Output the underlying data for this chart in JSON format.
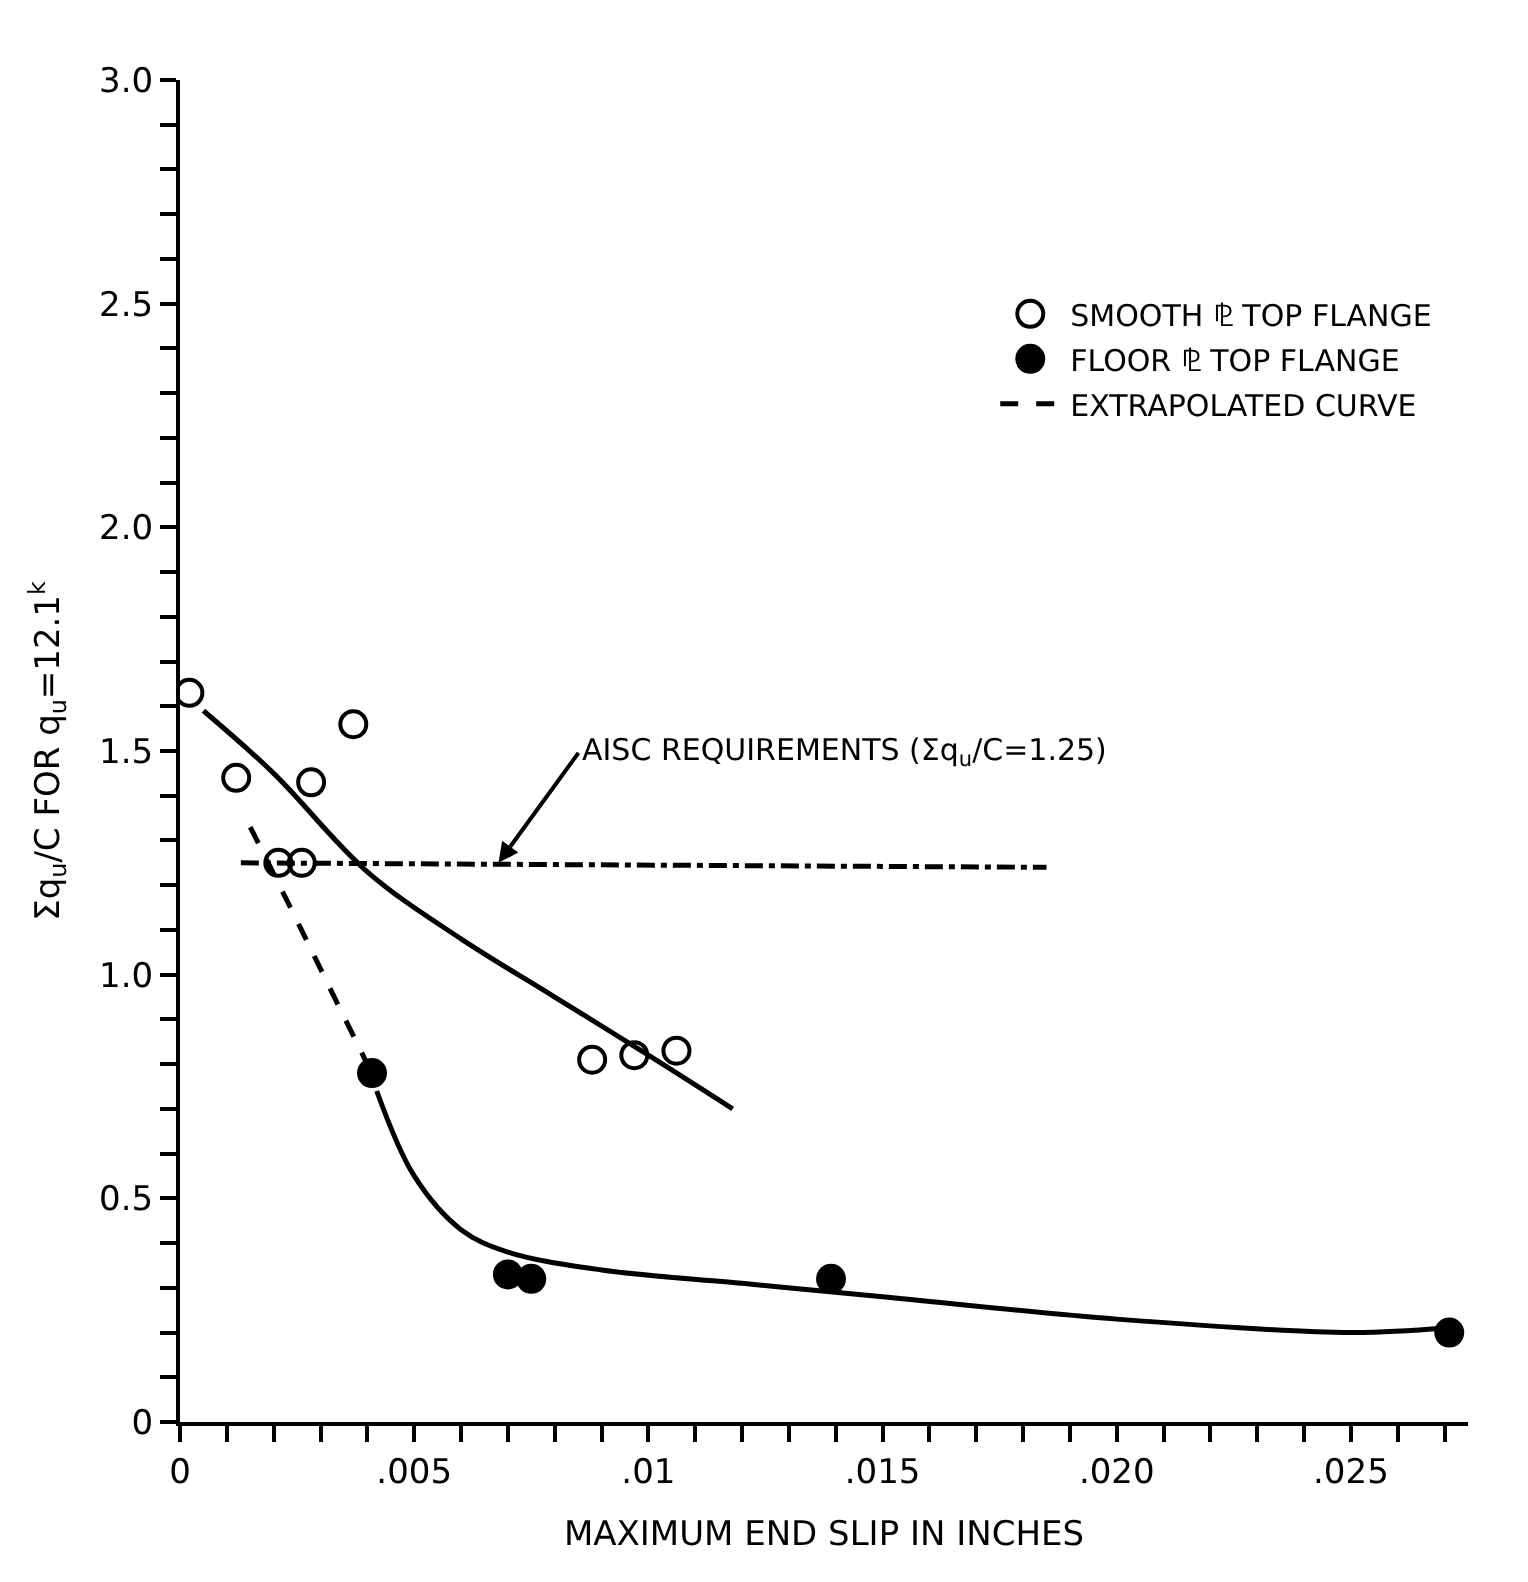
{
  "chart_data": {
    "type": "scatter",
    "xlabel": "MAXIMUM END SLIP IN INCHES",
    "ylabel": "Σq$_{u}$/C FOR q$_{u}$=12.1$^{k}$",
    "xlim": [
      0,
      0.0275
    ],
    "ylim": [
      0,
      3.0
    ],
    "xticks": [
      {
        "value": 0,
        "label": "0"
      },
      {
        "value": 0.001,
        "label": null
      },
      {
        "value": 0.002,
        "label": null
      },
      {
        "value": 0.003,
        "label": null
      },
      {
        "value": 0.004,
        "label": null
      },
      {
        "value": 0.005,
        "label": ".005"
      },
      {
        "value": 0.006,
        "label": null
      },
      {
        "value": 0.007,
        "label": null
      },
      {
        "value": 0.008,
        "label": null
      },
      {
        "value": 0.009,
        "label": null
      },
      {
        "value": 0.01,
        "label": ".01"
      },
      {
        "value": 0.011,
        "label": null
      },
      {
        "value": 0.012,
        "label": null
      },
      {
        "value": 0.013,
        "label": null
      },
      {
        "value": 0.014,
        "label": null
      },
      {
        "value": 0.015,
        "label": ".015"
      },
      {
        "value": 0.016,
        "label": null
      },
      {
        "value": 0.017,
        "label": null
      },
      {
        "value": 0.018,
        "label": null
      },
      {
        "value": 0.019,
        "label": null
      },
      {
        "value": 0.02,
        "label": ".020"
      },
      {
        "value": 0.021,
        "label": null
      },
      {
        "value": 0.022,
        "label": null
      },
      {
        "value": 0.023,
        "label": null
      },
      {
        "value": 0.024,
        "label": null
      },
      {
        "value": 0.025,
        "label": ".025"
      },
      {
        "value": 0.026,
        "label": null
      },
      {
        "value": 0.027,
        "label": null
      }
    ],
    "yticks": [
      0,
      {
        "value": 0.1,
        "label": null
      },
      {
        "value": 0.2,
        "label": null
      },
      {
        "value": 0.3,
        "label": null
      },
      {
        "value": 0.4,
        "label": null
      },
      {
        "value": 0.5,
        "label": "0.5"
      },
      {
        "value": 0.6,
        "label": null
      },
      {
        "value": 0.7,
        "label": null
      },
      {
        "value": 0.8,
        "label": null
      },
      {
        "value": 0.9,
        "label": null
      },
      {
        "value": 1.0,
        "label": "1.0"
      },
      {
        "value": 1.1,
        "label": null
      },
      {
        "value": 1.2,
        "label": null
      },
      {
        "value": 1.3,
        "label": null
      },
      {
        "value": 1.4,
        "label": null
      },
      {
        "value": 1.5,
        "label": "1.5"
      },
      {
        "value": 1.6,
        "label": null
      },
      {
        "value": 1.7,
        "label": null
      },
      {
        "value": 1.8,
        "label": null
      },
      {
        "value": 1.9,
        "label": null
      },
      {
        "value": 2.0,
        "label": "2.0"
      },
      {
        "value": 2.1,
        "label": null
      },
      {
        "value": 2.2,
        "label": null
      },
      {
        "value": 2.3,
        "label": null
      },
      {
        "value": 2.4,
        "label": null
      },
      {
        "value": 2.5,
        "label": "2.5"
      },
      {
        "value": 2.6,
        "label": null
      },
      {
        "value": 2.7,
        "label": null
      },
      {
        "value": 2.8,
        "label": null
      },
      {
        "value": 2.9,
        "label": null
      },
      {
        "value": 3.0,
        "label": "3.0"
      }
    ],
    "legend": "top right",
    "series": [
      {
        "name": "SMOOTH ⅊ TOP FLANGE",
        "marker": "circle-open",
        "color": "#000000",
        "x": [
          0.0002,
          0.0012,
          0.0021,
          0.0026,
          0.0028,
          0.0037,
          0.0088,
          0.0097,
          0.0106
        ],
        "values": [
          1.63,
          1.44,
          1.25,
          1.25,
          1.43,
          1.56,
          0.81,
          0.82,
          0.83
        ]
      },
      {
        "name": "FLOOR ⅊ TOP FLANGE",
        "marker": "circle",
        "color": "#000000",
        "x": [
          0.0041,
          0.007,
          0.0075,
          0.0139,
          0.0271
        ],
        "values": [
          0.78,
          0.33,
          0.32,
          0.32,
          0.2
        ]
      },
      {
        "name": "EXTRAPOLATED CURVE",
        "type": "line",
        "line_style": "dashed",
        "color": "#000000",
        "x": [
          0.0015,
          0.0025,
          0.0032,
          0.004
        ],
        "values": [
          1.33,
          1.12,
          0.97,
          0.8
        ]
      },
      {
        "type": "line",
        "line_style": "solid",
        "color": "#000000",
        "x": [
          0.0005,
          0.002,
          0.004,
          0.006,
          0.008,
          0.01,
          0.0118
        ],
        "values": [
          1.59,
          1.45,
          1.23,
          1.08,
          0.95,
          0.82,
          0.7
        ]
      },
      {
        "type": "line",
        "line_style": "solid",
        "color": "#000000",
        "x": [
          0.0042,
          0.005,
          0.006,
          0.007,
          0.009,
          0.012,
          0.015,
          0.02,
          0.025,
          0.027
        ],
        "values": [
          0.74,
          0.55,
          0.43,
          0.38,
          0.34,
          0.31,
          0.28,
          0.23,
          0.2,
          0.21
        ]
      },
      {
        "type": "line",
        "line_style": "dashdot",
        "color": "#000000",
        "x": [
          0.0013,
          0.0185
        ],
        "values": [
          1.25,
          1.24
        ]
      }
    ],
    "annotations": [
      {
        "text": "AISC REQUIREMENTS (Σq$_{u}$/C=1.25)",
        "x": 0.0068,
        "y": 1.25
      }
    ]
  }
}
